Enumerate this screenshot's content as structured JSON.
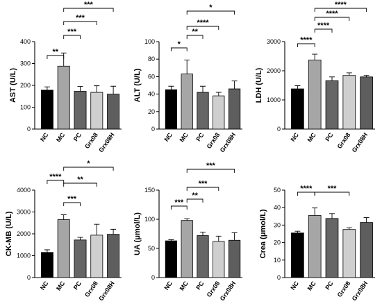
{
  "colors": {
    "NC": "#000000",
    "MC": "#a6a6a6",
    "PC": "#666666",
    "Grx08": "#cfcfcf",
    "Grx08H": "#5e5e5e"
  },
  "chart_data": [
    {
      "type": "bar",
      "ylabel": "AST (U/L)",
      "categories": [
        "NC",
        "MC",
        "PC",
        "Grx08",
        "Grx08H"
      ],
      "values": [
        178,
        288,
        173,
        168,
        160
      ],
      "errors": [
        15,
        60,
        22,
        30,
        36
      ],
      "ylim": [
        0,
        400
      ],
      "yticks": [
        "0",
        "100",
        "200",
        "300",
        "400"
      ],
      "significance": [
        {
          "from": 0,
          "to": 1,
          "label": "**"
        },
        {
          "from": 1,
          "to": 2,
          "label": "***"
        },
        {
          "from": 1,
          "to": 3,
          "label": "***"
        },
        {
          "from": 1,
          "to": 4,
          "label": "***"
        }
      ]
    },
    {
      "type": "bar",
      "ylabel": "ALT (U/L)",
      "categories": [
        "NC",
        "MC",
        "PC",
        "Grx08",
        "Grx08H"
      ],
      "values": [
        45,
        63,
        42,
        38,
        46
      ],
      "errors": [
        4,
        16,
        7,
        4,
        9
      ],
      "ylim": [
        0,
        100
      ],
      "yticks": [
        "0",
        "20",
        "40",
        "60",
        "80",
        "100"
      ],
      "significance": [
        {
          "from": 0,
          "to": 1,
          "label": "*"
        },
        {
          "from": 1,
          "to": 2,
          "label": "**"
        },
        {
          "from": 1,
          "to": 3,
          "label": "****"
        },
        {
          "from": 1,
          "to": 4,
          "label": "*"
        }
      ]
    },
    {
      "type": "bar",
      "ylabel": "LDH (U/L)",
      "categories": [
        "NC",
        "MC",
        "PC",
        "Grx08",
        "Grx08H"
      ],
      "values": [
        1380,
        2370,
        1660,
        1840,
        1790
      ],
      "errors": [
        110,
        200,
        130,
        90,
        50
      ],
      "ylim": [
        0,
        3000
      ],
      "yticks": [
        "0",
        "1000",
        "2000",
        "3000"
      ],
      "significance": [
        {
          "from": 0,
          "to": 1,
          "label": "****"
        },
        {
          "from": 1,
          "to": 2,
          "label": "****"
        },
        {
          "from": 1,
          "to": 3,
          "label": "****"
        },
        {
          "from": 1,
          "to": 4,
          "label": "****"
        }
      ]
    },
    {
      "type": "bar",
      "ylabel": "CK-MB (U/L)",
      "categories": [
        "NC",
        "MC",
        "PC",
        "Grx08",
        "Grx08H"
      ],
      "values": [
        1150,
        2650,
        1720,
        1940,
        1980
      ],
      "errors": [
        120,
        220,
        120,
        500,
        230
      ],
      "ylim": [
        0,
        4000
      ],
      "yticks": [
        "0",
        "1000",
        "2000",
        "3000",
        "4000"
      ],
      "significance": [
        {
          "from": 0,
          "to": 1,
          "label": "****"
        },
        {
          "from": 1,
          "to": 2,
          "label": "***"
        },
        {
          "from": 1,
          "to": 3,
          "label": "**"
        },
        {
          "from": 1,
          "to": 4,
          "label": "*"
        }
      ]
    },
    {
      "type": "bar",
      "ylabel": "UA (μmol/L)",
      "categories": [
        "NC",
        "MC",
        "PC",
        "Grx08",
        "Grx08H"
      ],
      "values": [
        63,
        98,
        72,
        62,
        64
      ],
      "errors": [
        2,
        3,
        6,
        9,
        13
      ],
      "ylim": [
        0,
        150
      ],
      "yticks": [
        "0",
        "50",
        "100",
        "150"
      ],
      "significance": [
        {
          "from": 0,
          "to": 1,
          "label": "***"
        },
        {
          "from": 1,
          "to": 2,
          "label": "**"
        },
        {
          "from": 1,
          "to": 3,
          "label": "***"
        },
        {
          "from": 1,
          "to": 4,
          "label": "***"
        }
      ]
    },
    {
      "type": "bar",
      "ylabel": "Crea (μmol/L)",
      "categories": [
        "NC",
        "MC",
        "PC",
        "Grx08",
        "Grx08H"
      ],
      "values": [
        25.5,
        35.5,
        33.8,
        27.5,
        31.5
      ],
      "errors": [
        1,
        4.3,
        2.8,
        1,
        2.8
      ],
      "ylim": [
        0,
        50
      ],
      "yticks": [
        "0",
        "10",
        "20",
        "30",
        "40",
        "50"
      ],
      "significance": [
        {
          "from": 0,
          "to": 1,
          "label": "****"
        },
        {
          "from": 1,
          "to": 3,
          "label": "***"
        }
      ]
    }
  ]
}
